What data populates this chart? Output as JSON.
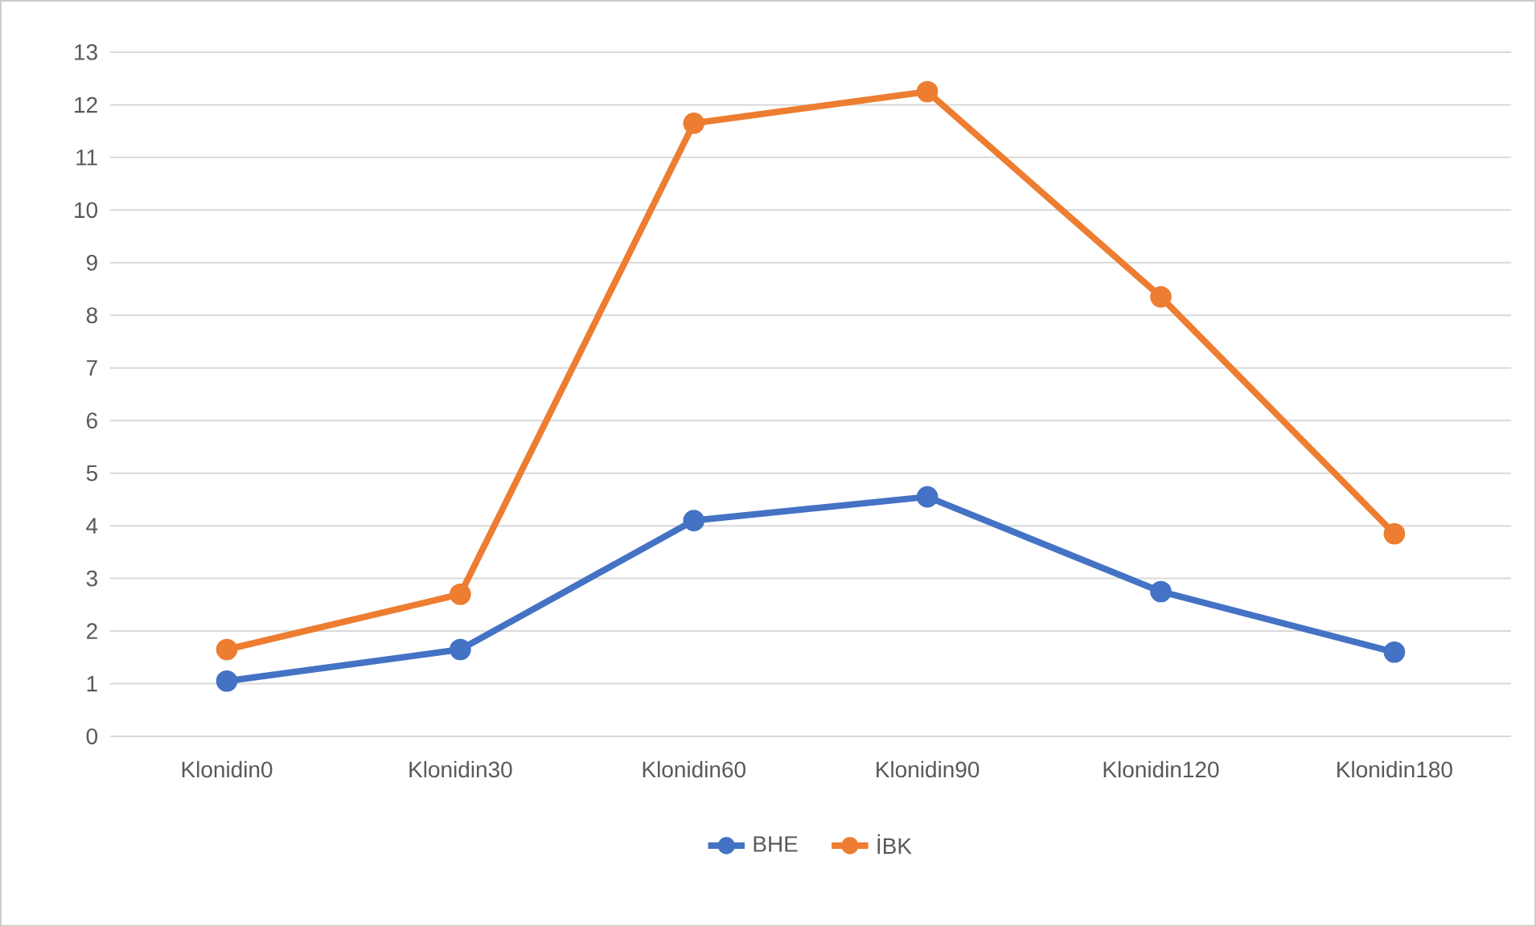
{
  "chart_data": {
    "type": "line",
    "categories": [
      "Klonidin0",
      "Klonidin30",
      "Klonidin60",
      "Klonidin90",
      "Klonidin120",
      "Klonidin180"
    ],
    "series": [
      {
        "name": "BHE",
        "color": "#4472c4",
        "values": [
          1.05,
          1.65,
          4.1,
          4.55,
          2.75,
          1.6
        ]
      },
      {
        "name": "İBK",
        "color": "#ed7d31",
        "values": [
          1.65,
          2.7,
          11.65,
          12.25,
          8.35,
          3.85
        ]
      }
    ],
    "ylim": [
      0,
      13
    ],
    "yticks": [
      0,
      1,
      2,
      3,
      4,
      5,
      6,
      7,
      8,
      9,
      10,
      11,
      12,
      13
    ],
    "grid": "y",
    "legend": "bottom",
    "marker": "circle"
  }
}
